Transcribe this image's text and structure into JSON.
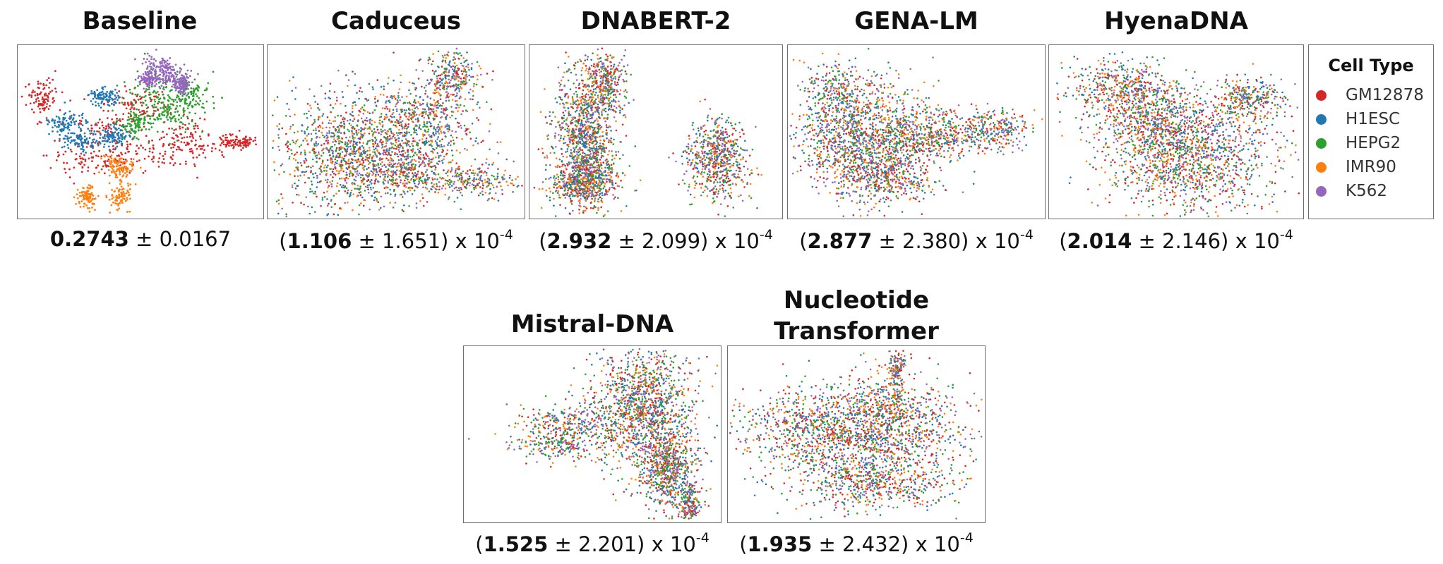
{
  "chart_data": {
    "type": "scatter",
    "legend": {
      "title": "Cell Type",
      "placement": "right",
      "entries": [
        {
          "name": "GM12878",
          "color": "#d62728"
        },
        {
          "name": "H1ESC",
          "color": "#1f77b4"
        },
        {
          "name": "HEPG2",
          "color": "#2ca02c"
        },
        {
          "name": "IMR90",
          "color": "#ff7f0e"
        },
        {
          "name": "K562",
          "color": "#9467bd"
        }
      ]
    },
    "panels": [
      {
        "id": "baseline",
        "title": "Baseline",
        "score_mean": "0.2743",
        "score_sd": "0.0167",
        "scale_exp": "",
        "pattern": "clustered"
      },
      {
        "id": "caduceus",
        "title": "Caduceus",
        "score_mean": "1.106",
        "score_sd": "1.651",
        "scale_exp": "-4",
        "pattern": "mixed"
      },
      {
        "id": "dnabert2",
        "title": "DNABERT-2",
        "score_mean": "2.932",
        "score_sd": "2.099",
        "scale_exp": "-4",
        "pattern": "mixed"
      },
      {
        "id": "genalm",
        "title": "GENA-LM",
        "score_mean": "2.877",
        "score_sd": "2.380",
        "scale_exp": "-4",
        "pattern": "mixed"
      },
      {
        "id": "hyenadna",
        "title": "HyenaDNA",
        "score_mean": "2.014",
        "score_sd": "2.146",
        "scale_exp": "-4",
        "pattern": "mixed"
      },
      {
        "id": "mistral",
        "title": "Mistral-DNA",
        "score_mean": "1.525",
        "score_sd": "2.201",
        "scale_exp": "-4",
        "pattern": "mixed"
      },
      {
        "id": "nt",
        "title": "Nucleotide Transformer",
        "score_mean": "1.935",
        "score_sd": "2.432",
        "scale_exp": "-4",
        "pattern": "mixed"
      }
    ],
    "axes": {
      "ticks": false,
      "grid": false
    }
  },
  "caption_text": {
    "pm": " ± ",
    "open": "(",
    "close": ")",
    "times": " x 10"
  }
}
